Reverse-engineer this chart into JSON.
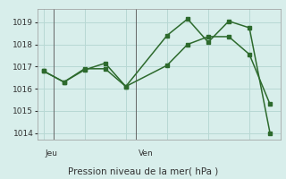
{
  "background_color": "#d8eeeb",
  "grid_color": "#b8d8d4",
  "line_color": "#2d6a2d",
  "line1_x": [
    0,
    1,
    2,
    3,
    4,
    6,
    7,
    8,
    9,
    10,
    11
  ],
  "line1_y": [
    1016.8,
    1016.3,
    1016.85,
    1017.15,
    1016.1,
    1018.4,
    1019.15,
    1018.1,
    1019.05,
    1018.75,
    1014.0
  ],
  "line2_x": [
    0,
    1,
    2,
    3,
    4,
    6,
    7,
    8,
    9,
    10,
    11
  ],
  "line2_y": [
    1016.8,
    1016.3,
    1016.9,
    1016.9,
    1016.1,
    1017.05,
    1018.0,
    1018.35,
    1018.35,
    1017.55,
    1015.3
  ],
  "ylim": [
    1013.7,
    1019.6
  ],
  "yticks": [
    1014,
    1015,
    1016,
    1017,
    1018,
    1019
  ],
  "xlim": [
    -0.3,
    11.5
  ],
  "vline1_x": 0.5,
  "vline2_x": 4.5,
  "xlabel": "Pression niveau de la mer( hPa )",
  "jeu_x": 0.1,
  "ven_x": 4.6,
  "marker": "s",
  "markersize": 2.8,
  "linewidth": 1.1,
  "tick_fontsize": 6.5,
  "label_fontsize": 7.5,
  "day_fontsize": 6.5
}
